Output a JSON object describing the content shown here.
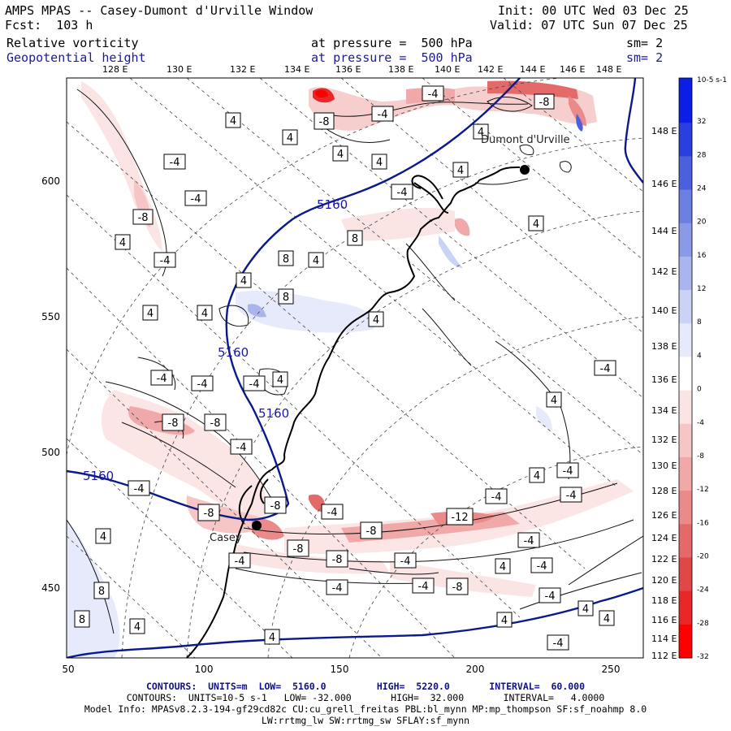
{
  "header": {
    "title": "AMPS MPAS -- Casey-Dumont d'Urville Window",
    "init": "Init: 00 UTC Wed 03 Dec 25",
    "fcst": "Fcst:  103 h",
    "valid": "Valid: 07 UTC Sun 07 Dec 25",
    "field1": {
      "name": "Relative vorticity",
      "level": "at pressure =  500 hPa",
      "sm": "sm= 2"
    },
    "field2": {
      "name": "Geopotential height",
      "level": "at pressure =  500 hPa",
      "sm": "sm= 2"
    }
  },
  "map": {
    "top_lon_labels": [
      "128 E",
      "130 E",
      "132 E",
      "134 E",
      "136 E",
      "138 E",
      "140 E",
      "142 E",
      "144 E",
      "146 E",
      "148 E"
    ],
    "right_lon_labels": [
      "148 E",
      "146 E",
      "144 E",
      "142 E",
      "140 E",
      "138 E",
      "136 E",
      "134 E",
      "132 E",
      "130 E",
      "128 E",
      "126 E",
      "124 E",
      "122 E",
      "120 E",
      "118 E",
      "116 E",
      "114 E",
      "112 E"
    ],
    "x_ticks": [
      "50",
      "100",
      "150",
      "200",
      "250"
    ],
    "y_ticks": [
      "600",
      "550",
      "500",
      "450"
    ],
    "stations": [
      {
        "name": "Casey",
        "x": 120,
        "y": 473
      },
      {
        "name": "Dumont d'Urville",
        "x": 218,
        "y": 604
      }
    ],
    "height_contour_label": "5160",
    "vorticity_labels": [
      "4",
      "-4",
      "8",
      "-8",
      "-12"
    ]
  },
  "colorbar": {
    "unit": "10-5 s-1",
    "tick_labels": [
      "32",
      "28",
      "24",
      "20",
      "16",
      "12",
      "8",
      "4",
      "0",
      "-4",
      "-8",
      "-12",
      "-16",
      "-20",
      "-24",
      "-28",
      "-32"
    ],
    "colors": [
      "#0a1ee6",
      "#2a3fdd",
      "#4a60dd",
      "#6a7fe0",
      "#8a9ae6",
      "#aab5ee",
      "#cad2f6",
      "#e6eafb",
      "#ffffff",
      "#fbe4e4",
      "#f6c6c6",
      "#f0a8a8",
      "#ea8a8a",
      "#e46a6a",
      "#e04848",
      "#e82828",
      "#ff0000"
    ]
  },
  "footer": {
    "contours1": "CONTOURS:  UNITS=m  LOW=  5160.0         HIGH=  5220.0       INTERVAL=  60.000",
    "contours2": "CONTOURS:  UNITS=10-5 s-1   LOW= -32.000       HIGH=  32.000       INTERVAL=   4.0000",
    "model_info": "Model Info: MPASv8.2.3-194-gf29cd82c CU:cu_grell_freitas PBL:bl_mynn MP:mp_thompson SF:sf_noahmp 8.0",
    "model_info2": "LW:rrtmg_lw SW:rrtmg_sw SFLAY:sf_mynn"
  },
  "colors": {
    "height_contour": "#0a1a8c",
    "positive_vort": "#4a5fe0",
    "negative_vort": "#e84848"
  }
}
